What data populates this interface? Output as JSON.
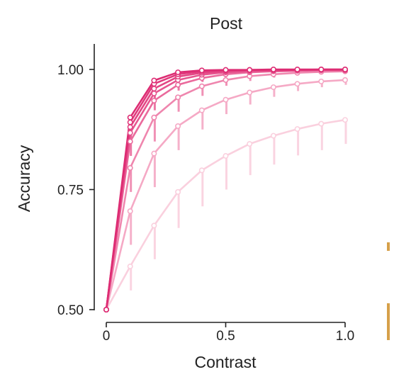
{
  "chart_data": {
    "type": "line",
    "title": "Post",
    "xlabel": "Contrast",
    "ylabel": "Accuracy",
    "xlim": [
      0,
      1.0
    ],
    "ylim": [
      0.5,
      1.0
    ],
    "xticks": [
      0,
      0.5,
      1.0
    ],
    "xtick_labels": [
      "0",
      "0.5",
      "1.0"
    ],
    "yticks": [
      0.5,
      0.75,
      1.0
    ],
    "ytick_labels": [
      "0.50",
      "0.75",
      "1.00"
    ],
    "grid": false,
    "legend": "none",
    "x": [
      0,
      0.1,
      0.2,
      0.3,
      0.4,
      0.5,
      0.6,
      0.7,
      0.8,
      0.9,
      1.0
    ],
    "series": [
      {
        "color": "#fad0de",
        "values": [
          0.5,
          0.59,
          0.675,
          0.745,
          0.79,
          0.82,
          0.845,
          0.862,
          0.876,
          0.887,
          0.895
        ],
        "err_low": [
          0,
          0.05,
          0.07,
          0.075,
          0.075,
          0.07,
          0.065,
          0.06,
          0.055,
          0.055,
          0.05
        ]
      },
      {
        "color": "#f5a9c5",
        "values": [
          0.5,
          0.705,
          0.825,
          0.882,
          0.915,
          0.937,
          0.952,
          0.963,
          0.97,
          0.975,
          0.978
        ],
        "err_low": [
          0,
          0.07,
          0.07,
          0.05,
          0.04,
          0.03,
          0.025,
          0.02,
          0.015,
          0.012,
          0.01
        ]
      },
      {
        "color": "#ef86ae",
        "values": [
          0.5,
          0.795,
          0.9,
          0.942,
          0.965,
          0.978,
          0.986,
          0.99,
          0.993,
          0.995,
          0.996
        ],
        "err_low": [
          0,
          0.05,
          0.05,
          0.03,
          0.02,
          0.012,
          0.01,
          0.007,
          0.005,
          0.004,
          0.003
        ]
      },
      {
        "color": "#ea6a9c",
        "values": [
          0.5,
          0.85,
          0.935,
          0.968,
          0.982,
          0.99,
          0.994,
          0.996,
          0.997,
          0.998,
          0.998
        ],
        "err_low": [
          0,
          0.03,
          0.02,
          0.012,
          0.008,
          0.005,
          0.004,
          0.003,
          0.002,
          0.002,
          0.002
        ]
      },
      {
        "color": "#e6558f",
        "values": [
          0.5,
          0.868,
          0.95,
          0.978,
          0.989,
          0.994,
          0.996,
          0.997,
          0.998,
          0.999,
          0.999
        ],
        "err_low": [
          0,
          0.02,
          0.015,
          0.008,
          0.005,
          0.003,
          0.002,
          0.002,
          0.001,
          0.001,
          0.001
        ]
      },
      {
        "color": "#e34684",
        "values": [
          0.5,
          0.88,
          0.96,
          0.985,
          0.993,
          0.996,
          0.998,
          0.998,
          0.999,
          0.999,
          0.999
        ],
        "err_low": [
          0,
          0.015,
          0.01,
          0.005,
          0.003,
          0.002,
          0.001,
          0.001,
          0.001,
          0.001,
          0.001
        ]
      },
      {
        "color": "#e0397c",
        "values": [
          0.5,
          0.89,
          0.97,
          0.99,
          0.996,
          0.998,
          0.999,
          0.999,
          0.999,
          1.0,
          1.0
        ],
        "err_low": [
          0,
          0.01,
          0.008,
          0.004,
          0.002,
          0.001,
          0.001,
          0.001,
          0.0,
          0.0,
          0.0
        ]
      },
      {
        "color": "#dd2c73",
        "values": [
          0.5,
          0.9,
          0.977,
          0.994,
          0.998,
          0.999,
          0.999,
          1.0,
          1.0,
          1.0,
          1.0
        ],
        "err_low": [
          0,
          0.008,
          0.005,
          0.002,
          0.001,
          0.0,
          0.0,
          0.0,
          0.0,
          0.0,
          0.0
        ]
      }
    ]
  }
}
